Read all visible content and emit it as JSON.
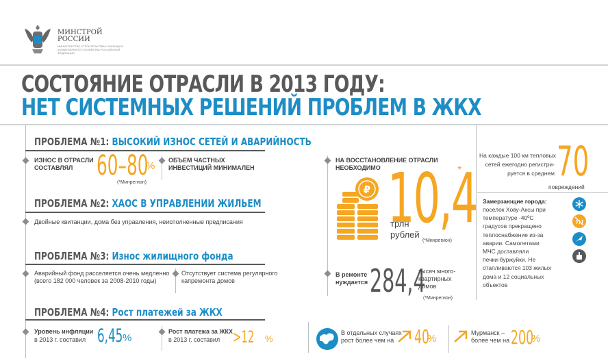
{
  "logo": {
    "name": "МИНСТРОЙ\nРОССИИ",
    "subtitle": "МИНИСТЕРСТВО СТРОИТЕЛЬСТВА И ЖИЛИЩНО-КОММУНАЛЬНОГО ХОЗЯЙСТВА РОССИЙСКОЙ ФЕДЕРАЦИИ"
  },
  "title": {
    "line1": "СОСТОЯНИЕ ОТРАСЛИ В 2013 ГОДУ:",
    "line2": "НЕТ СИСТЕМНЫХ РЕШЕНИЙ ПРОБЛЕМ В ЖКХ"
  },
  "problem1": {
    "prefix": "ПРОБЛЕМА №1:",
    "title": "ВЫСОКИЙ ИЗНОС СЕТЕЙ И АВАРИЙНОСТЬ",
    "wear_text": "ИЗНОС В ОТРАСЛИ\nСОСТАВЛЯЛ",
    "wear_value": "60–80",
    "wear_unit": "%",
    "wear_source": "(*Минрегион)",
    "invest_text": "ОБЪЕМ ЧАСТНЫХ\nИНВЕСТИЦИЙ МИНИМАЛЕН",
    "restore_text": "НА ВОССТАНОВЛЕНИЕ ОТРАСЛИ\nНЕОБХОДИМО",
    "restore_value": "10,4",
    "restore_star": "*",
    "restore_unit": "трлн\nрублей",
    "restore_source": "(*Минрегион)"
  },
  "problem2": {
    "prefix": "ПРОБЛЕМА №2:",
    "title": "ХАОС В УПРАВЛЕНИИ ЖИЛЬЕМ",
    "text": "Двойные квитанции, дома без управления, неисполненные предписания"
  },
  "problem3": {
    "prefix": "ПРОБЛЕМА №3:",
    "title": "Износ жилищного фонда",
    "text1": "Аварийный фонд расселяется очень медленно\n(всего 182 000 человек за 2008-2010 годы)",
    "text2": "Отсутствует система регулярного\nкапремонта домов",
    "repair_label": "В ремонте\nнуждается",
    "repair_value": "284,4",
    "repair_unit": "тысяч много-\nквартирных\nдомов",
    "repair_source": "(*Минрегион)"
  },
  "problem4": {
    "prefix": "ПРОБЛЕМА №4:",
    "title": "Рост платежей за ЖКХ",
    "inflation_label": "Уровень инфляции",
    "inflation_sub": "в 2013 г. составил",
    "inflation_value": "6,45",
    "inflation_unit": "%",
    "payment_label": "Рост платежа за ЖКХ",
    "payment_sub": "в 2013 г. составил",
    "payment_value": ">12",
    "payment_unit": "%",
    "cases_text": "В отдельных случаях\nрост более чем на",
    "cases_value": "40",
    "cases_unit": "%",
    "murmansk_text": "Мурманск –\nболее чем на",
    "murmansk_value": "200",
    "murmansk_unit": "%"
  },
  "side": {
    "per100_text": "На каждые 100 км тепловых\nсетей ежегодно регистри-\nруется в среднем",
    "per100_value": "70",
    "per100_unit": "повреждений",
    "frozen_title": "Замерзающие города:",
    "frozen_text": "поселок Хову-Аксы при\nтемпературе -40ºС\nградусов прекращено\nтеплоснабжение из-за\nаварии. Самолетами\nМЧС доставляли\nпечки-буржуйки. Не\nотапливаются 103 жилых\nдома и 12 социальных\nобъектов"
  },
  "colors": {
    "blue": "#1c8dc6",
    "orange": "#f5a623",
    "gray": "#58595b"
  }
}
